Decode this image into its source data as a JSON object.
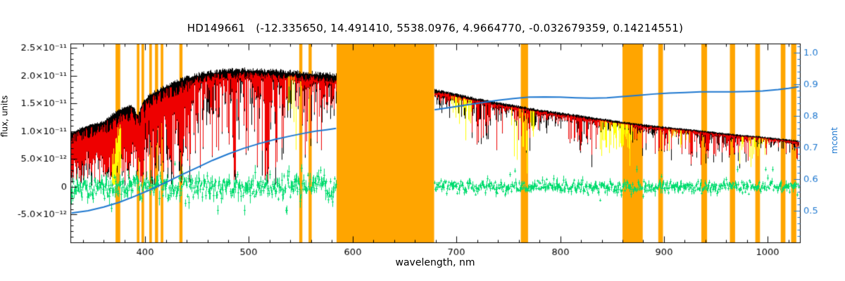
{
  "chart_data": {
    "type": "line",
    "title": "HD149661   (-12.335650, 14.491410, 5538.0976, 4.9664770, -0.032679359, 0.14214551)",
    "xlabel": "wavelength, nm",
    "ylabel_left": "flux, units",
    "ylabel_right": "mcont",
    "xlim": [
      328,
      1031
    ],
    "ylim_left": [
      -1e-11,
      2.58e-11
    ],
    "ylim_right": [
      0.4,
      1.03
    ],
    "x_ticks": [
      {
        "value": 400,
        "label": "400"
      },
      {
        "value": 500,
        "label": "500"
      },
      {
        "value": 600,
        "label": "600"
      },
      {
        "value": 700,
        "label": "700"
      },
      {
        "value": 800,
        "label": "800"
      },
      {
        "value": 900,
        "label": "900"
      },
      {
        "value": 1000,
        "label": "1000"
      }
    ],
    "x_minor_step": 20,
    "y_ticks_left": [
      {
        "value": 2.5e-11,
        "label": "2.5×10⁻¹¹"
      },
      {
        "value": 2e-11,
        "label": "2.0×10⁻¹¹"
      },
      {
        "value": 1.5e-11,
        "label": "1.5×10⁻¹¹"
      },
      {
        "value": 1e-11,
        "label": "1.0×10⁻¹¹"
      },
      {
        "value": 5e-12,
        "label": "5.0×10⁻¹²"
      },
      {
        "value": 0,
        "label": "0"
      },
      {
        "value": -5e-12,
        "label": "-5.0×10⁻¹²"
      }
    ],
    "y_minor_step_left": 1e-12,
    "y_ticks_right": [
      {
        "value": 1.0,
        "label": "1.0"
      },
      {
        "value": 0.9,
        "label": "0.9"
      },
      {
        "value": 0.8,
        "label": "0.8"
      },
      {
        "value": 0.7,
        "label": "0.7"
      },
      {
        "value": 0.6,
        "label": "0.6"
      },
      {
        "value": 0.5,
        "label": "0.5"
      }
    ],
    "y_minor_step_right": 0.02,
    "data_range_nm": [
      329,
      1030
    ],
    "gap_nm": [
      584.5,
      678.5
    ],
    "masked_bands_nm": [
      [
        584.5,
        678.5
      ],
      [
        371.5,
        376
      ],
      [
        392,
        394.5
      ],
      [
        396.5,
        399
      ],
      [
        404,
        406.5
      ],
      [
        409.5,
        412.5
      ],
      [
        415,
        417.5
      ],
      [
        433,
        436
      ],
      [
        548.5,
        551.5
      ],
      [
        557.5,
        560.5
      ],
      [
        762,
        769
      ],
      [
        860,
        879.5
      ],
      [
        894.5,
        899
      ],
      [
        936,
        941.5
      ],
      [
        963.5,
        968.5
      ],
      [
        988,
        992.5
      ],
      [
        1012.5,
        1017
      ],
      [
        1022.5,
        1027.5
      ]
    ],
    "yellow_regions": [
      {
        "range": [
          368,
          377
        ],
        "strength": 0.85
      },
      {
        "range": [
          538,
          546
        ],
        "strength": 0.3
      },
      {
        "range": [
          695,
          718
        ],
        "strength": 0.45
      },
      {
        "range": [
          752,
          775
        ],
        "strength": 0.5
      },
      {
        "range": [
          838,
          872
        ],
        "strength": 0.65
      },
      {
        "range": [
          905,
          928
        ],
        "strength": 0.4
      },
      {
        "range": [
          972,
          1000
        ],
        "strength": 0.35
      }
    ],
    "deep_line_regions_nm": [
      [
        715,
        740
      ],
      [
        755,
        772
      ],
      [
        810,
        840
      ],
      [
        890,
        985
      ]
    ],
    "absorption_lines_nm": [
      393.4,
      396.8,
      410.2,
      434.0,
      486.1,
      516.7,
      518.4,
      527.0
    ],
    "envelope": {
      "x_nm": [
        329,
        340,
        350,
        360,
        370,
        380,
        388,
        393,
        398,
        405,
        412,
        420,
        430,
        440,
        450,
        465,
        480,
        500,
        520,
        540,
        560,
        575,
        584,
        679,
        690,
        705,
        720,
        735,
        750,
        765,
        780,
        795,
        810,
        825,
        840,
        855,
        870,
        885,
        900,
        915,
        930,
        945,
        960,
        975,
        990,
        1005,
        1020,
        1030
      ],
      "flux_1e12": [
        9.5,
        10.5,
        11.0,
        11.5,
        13.0,
        14.0,
        14.3,
        12.5,
        15.0,
        16.3,
        17.0,
        17.8,
        18.6,
        19.3,
        19.8,
        20.3,
        20.6,
        20.7,
        20.5,
        20.3,
        20.1,
        19.9,
        19.8,
        17.3,
        16.9,
        16.3,
        15.7,
        15.2,
        14.7,
        14.2,
        13.7,
        13.3,
        12.9,
        12.5,
        12.1,
        11.7,
        11.3,
        11.0,
        10.7,
        10.4,
        10.1,
        9.8,
        9.5,
        9.2,
        9.0,
        8.7,
        8.4,
        8.2
      ]
    },
    "continuum_mcont": {
      "x_nm": [
        329,
        345,
        360,
        375,
        390,
        405,
        420,
        435,
        450,
        465,
        480,
        495,
        510,
        525,
        540,
        555,
        565,
        575,
        584,
        679,
        695,
        710,
        725,
        740,
        755,
        770,
        785,
        800,
        815,
        830,
        845,
        860,
        875,
        890,
        905,
        920,
        935,
        950,
        965,
        980,
        995,
        1010,
        1020,
        1030
      ],
      "y": [
        0.493,
        0.5,
        0.512,
        0.527,
        0.546,
        0.567,
        0.59,
        0.614,
        0.637,
        0.66,
        0.68,
        0.698,
        0.713,
        0.726,
        0.737,
        0.747,
        0.753,
        0.757,
        0.761,
        0.82,
        0.828,
        0.836,
        0.843,
        0.85,
        0.856,
        0.86,
        0.861,
        0.86,
        0.858,
        0.857,
        0.858,
        0.862,
        0.866,
        0.87,
        0.873,
        0.875,
        0.877,
        0.877,
        0.877,
        0.878,
        0.88,
        0.884,
        0.888,
        0.893
      ]
    },
    "residuals": {
      "mean_1e12": 0,
      "sigma_blue_1e12": 1.05,
      "sigma_red_1e12": 0.5
    },
    "colors": {
      "spectrum_observed": "#000000",
      "spectrum_model": "#ee0000",
      "excluded_points": "#ffff00",
      "residuals": "#00dc6e",
      "continuum": "#1e78d0",
      "masked_regions": "#ffa500",
      "axes": "#000000",
      "background": "#ffffff"
    }
  }
}
